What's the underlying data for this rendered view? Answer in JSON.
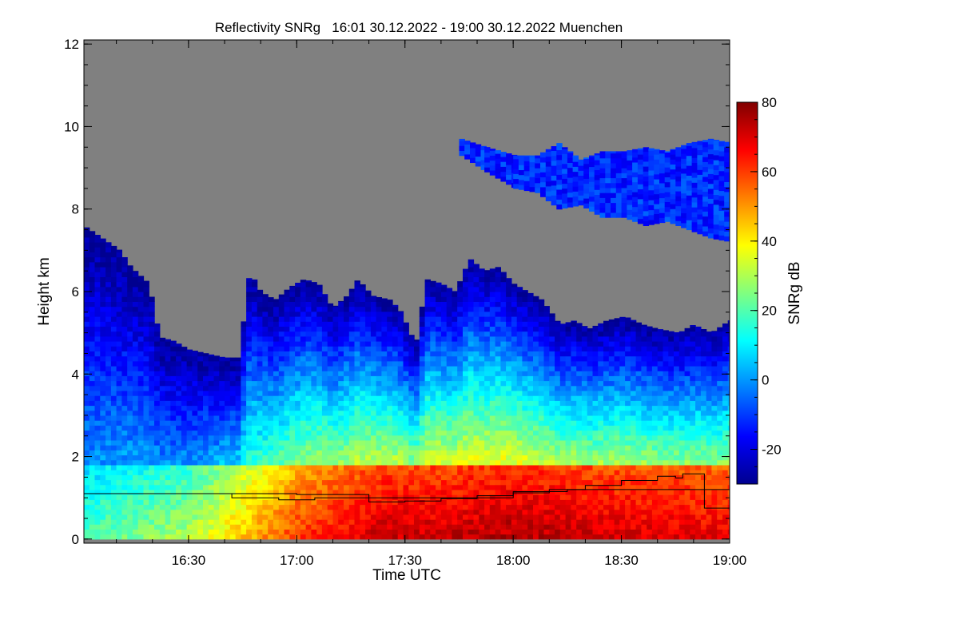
{
  "chart_data": {
    "type": "heatmap",
    "title": "Reflectivity SNRg   16:01 30.12.2022 - 19:00 30.12.2022 Muenchen",
    "xlabel": "Time UTC",
    "ylabel": "Height km",
    "colorbar_label": "SNRg dB",
    "x_range": [
      "16:01",
      "19:00"
    ],
    "xlim_minutes_utc": [
      961,
      1140
    ],
    "ylim": [
      -0.1,
      12.1
    ],
    "x_ticks": [
      {
        "label": "16:30",
        "minute": 990
      },
      {
        "label": "17:00",
        "minute": 1020
      },
      {
        "label": "17:30",
        "minute": 1050
      },
      {
        "label": "18:00",
        "minute": 1080
      },
      {
        "label": "18:30",
        "minute": 1110
      },
      {
        "label": "19:00",
        "minute": 1140
      }
    ],
    "y_ticks": [
      {
        "label": "0",
        "value": 0
      },
      {
        "label": "2",
        "value": 2
      },
      {
        "label": "4",
        "value": 4
      },
      {
        "label": "6",
        "value": 6
      },
      {
        "label": "8",
        "value": 8
      },
      {
        "label": "10",
        "value": 10
      },
      {
        "label": "12",
        "value": 12
      }
    ],
    "colorbar": {
      "range": [
        -30,
        80
      ],
      "ticks": [
        {
          "label": "-20",
          "value": -20
        },
        {
          "label": "0",
          "value": 0
        },
        {
          "label": "20",
          "value": 20
        },
        {
          "label": "40",
          "value": 40
        },
        {
          "label": "60",
          "value": 60
        },
        {
          "label": "80",
          "value": 80
        }
      ],
      "colormap": "jet",
      "colors": [
        "#00008f",
        "#0000ff",
        "#0080ff",
        "#00ffff",
        "#80ff80",
        "#ffff00",
        "#ff8000",
        "#ff0000",
        "#800000"
      ]
    },
    "no_signal_color": "#808080",
    "echo_top_km": [
      [
        961,
        7.6
      ],
      [
        966,
        7.3
      ],
      [
        971,
        7.0
      ],
      [
        974,
        6.6
      ],
      [
        979,
        6.2
      ],
      [
        982,
        4.9
      ],
      [
        986,
        4.8
      ],
      [
        990,
        4.6
      ],
      [
        995,
        4.5
      ],
      [
        1000,
        4.4
      ],
      [
        1004,
        4.4
      ],
      [
        1007,
        6.5
      ],
      [
        1010,
        6.0
      ],
      [
        1014,
        5.8
      ],
      [
        1018,
        6.1
      ],
      [
        1022,
        6.3
      ],
      [
        1026,
        6.2
      ],
      [
        1030,
        5.6
      ],
      [
        1034,
        5.9
      ],
      [
        1037,
        6.3
      ],
      [
        1041,
        5.9
      ],
      [
        1046,
        5.8
      ],
      [
        1049,
        5.5
      ],
      [
        1053,
        4.7
      ],
      [
        1056,
        6.3
      ],
      [
        1060,
        6.2
      ],
      [
        1064,
        6.0
      ],
      [
        1068,
        6.8
      ],
      [
        1072,
        6.5
      ],
      [
        1076,
        6.6
      ],
      [
        1080,
        6.2
      ],
      [
        1084,
        6.0
      ],
      [
        1088,
        5.8
      ],
      [
        1093,
        5.2
      ],
      [
        1097,
        5.3
      ],
      [
        1101,
        5.1
      ],
      [
        1106,
        5.3
      ],
      [
        1111,
        5.4
      ],
      [
        1116,
        5.2
      ],
      [
        1120,
        5.1
      ],
      [
        1126,
        5.0
      ],
      [
        1130,
        5.2
      ],
      [
        1135,
        5.0
      ],
      [
        1140,
        5.3
      ]
    ],
    "upper_layer_echo_km": [
      [
        1065,
        9.3,
        9.7
      ],
      [
        1072,
        8.9,
        9.5
      ],
      [
        1080,
        8.5,
        9.3
      ],
      [
        1086,
        8.4,
        9.3
      ],
      [
        1092,
        8.0,
        9.6
      ],
      [
        1098,
        8.1,
        9.2
      ],
      [
        1104,
        7.8,
        9.4
      ],
      [
        1110,
        7.8,
        9.4
      ],
      [
        1116,
        7.6,
        9.5
      ],
      [
        1122,
        7.7,
        9.4
      ],
      [
        1128,
        7.5,
        9.6
      ],
      [
        1134,
        7.3,
        9.7
      ],
      [
        1140,
        7.2,
        9.6
      ]
    ],
    "low_level_peak_snr_db": [
      [
        961,
        20
      ],
      [
        990,
        30
      ],
      [
        1020,
        60
      ],
      [
        1039,
        70
      ],
      [
        1045,
        72
      ],
      [
        1060,
        72
      ],
      [
        1080,
        75
      ],
      [
        1100,
        72
      ],
      [
        1120,
        70
      ],
      [
        1140,
        68
      ]
    ],
    "series": [
      {
        "x": [
          961,
          1020,
          1036,
          1040,
          1080,
          1095,
          1110,
          1128,
          1133,
          1140
        ],
        "y": [
          1.1,
          1.08,
          1.08,
          1.0,
          1.15,
          1.2,
          1.2,
          1.2,
          0.75,
          0.75
        ]
      },
      {
        "x": [
          961,
          1000,
          1002,
          1011,
          1015,
          1025,
          1040,
          1050,
          1060,
          1070,
          1080,
          1090,
          1100,
          1110,
          1120,
          1125,
          1127,
          1132,
          1133,
          1140
        ],
        "y": [
          1.1,
          1.1,
          1.0,
          1.0,
          0.95,
          1.0,
          0.9,
          0.92,
          0.98,
          1.05,
          1.12,
          1.2,
          1.3,
          1.42,
          1.52,
          1.48,
          1.58,
          1.58,
          1.2,
          1.2
        ]
      }
    ]
  }
}
